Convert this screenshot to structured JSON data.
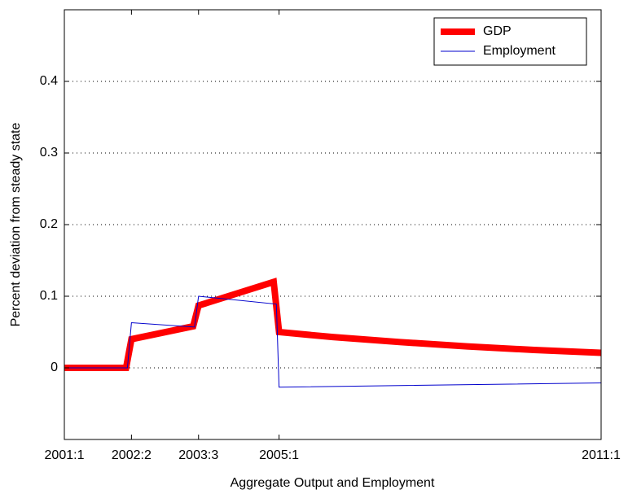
{
  "chart_data": {
    "type": "line",
    "xlabel": "Aggregate Output and Employment",
    "ylabel": "Percent deviation from steady state",
    "xlim": [
      0,
      40
    ],
    "xticks": [
      {
        "value": 0,
        "label": "2001:1"
      },
      {
        "value": 5,
        "label": "2002:2"
      },
      {
        "value": 10,
        "label": "2003:3"
      },
      {
        "value": 16,
        "label": "2005:1"
      },
      {
        "value": 40,
        "label": "2011:1"
      }
    ],
    "ylim": [
      -0.1,
      0.5
    ],
    "yticks": [
      0,
      0.1,
      0.2,
      0.3,
      0.4
    ],
    "grid": true,
    "legend": "upper right",
    "series": [
      {
        "name": "GDP",
        "color": "#ff0000",
        "linewidth": 8,
        "x": [
          0,
          4.6,
          5,
          9.6,
          10,
          15.6,
          16,
          20,
          25,
          30,
          35,
          40
        ],
        "values": [
          0,
          0,
          0.04,
          0.058,
          0.087,
          0.12,
          0.05,
          0.043,
          0.036,
          0.03,
          0.025,
          0.021
        ]
      },
      {
        "name": "Employment",
        "color": "#0000cc",
        "linewidth": 1,
        "x": [
          0,
          4.7,
          5,
          9.7,
          10,
          15.8,
          16,
          40
        ],
        "values": [
          0,
          0,
          0.063,
          0.057,
          0.1,
          0.089,
          -0.027,
          -0.021
        ]
      }
    ]
  }
}
